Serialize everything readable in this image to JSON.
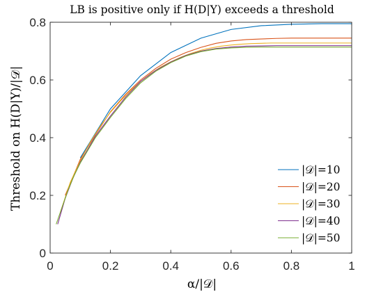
{
  "chart_data": {
    "type": "line",
    "title": "LB is positive only if H(D|Y) exceeds a threshold",
    "xlabel": "α/|𝒟|",
    "ylabel": "Threshold on H(D|Y)/|𝒟|",
    "xlim": [
      0,
      1
    ],
    "ylim": [
      0,
      0.8
    ],
    "xticks": [
      0,
      0.2,
      0.4,
      0.6,
      0.8,
      1
    ],
    "xtick_labels": [
      "0",
      "0.2",
      "0.4",
      "0.6",
      "0.8",
      "1"
    ],
    "yticks": [
      0,
      0.2,
      0.4,
      0.6,
      0.8
    ],
    "ytick_labels": [
      "0",
      "0.2",
      "0.4",
      "0.6",
      "0.8"
    ],
    "grid": false,
    "legend_position": "bottom-right",
    "series": [
      {
        "name": "|𝒟|=10",
        "color": "#0072BD",
        "x": [
          0.1,
          0.2,
          0.3,
          0.4,
          0.5,
          0.6,
          0.7,
          0.8,
          0.9,
          1.0
        ],
        "y": [
          0.33,
          0.5,
          0.615,
          0.695,
          0.745,
          0.775,
          0.788,
          0.793,
          0.795,
          0.795
        ]
      },
      {
        "name": "|𝒟|=20",
        "color": "#D95319",
        "x": [
          0.05,
          0.1,
          0.15,
          0.2,
          0.25,
          0.3,
          0.35,
          0.4,
          0.45,
          0.5,
          0.55,
          0.6,
          0.65,
          0.7,
          0.75,
          0.8,
          0.85,
          0.9,
          0.95,
          1.0
        ],
        "y": [
          0.2,
          0.325,
          0.41,
          0.49,
          0.55,
          0.6,
          0.64,
          0.672,
          0.695,
          0.713,
          0.727,
          0.735,
          0.74,
          0.742,
          0.744,
          0.745,
          0.745,
          0.745,
          0.745,
          0.745
        ]
      },
      {
        "name": "|𝒟|=30",
        "color": "#EDB120",
        "x": [
          0.0333,
          0.0667,
          0.1,
          0.1333,
          0.1667,
          0.2,
          0.2333,
          0.2667,
          0.3,
          0.3333,
          0.3667,
          0.4,
          0.4333,
          0.4667,
          0.5,
          0.5333,
          0.5667,
          0.6,
          0.6333,
          0.6667,
          0.7,
          0.7333,
          0.7667,
          0.8,
          0.8333,
          0.8667,
          0.9,
          0.9333,
          0.9667,
          1.0
        ],
        "y": [
          0.14,
          0.245,
          0.32,
          0.385,
          0.44,
          0.488,
          0.527,
          0.563,
          0.595,
          0.622,
          0.645,
          0.663,
          0.679,
          0.692,
          0.703,
          0.711,
          0.717,
          0.721,
          0.724,
          0.726,
          0.727,
          0.728,
          0.728,
          0.728,
          0.728,
          0.728,
          0.728,
          0.728,
          0.728,
          0.728
        ]
      },
      {
        "name": "|𝒟|=40",
        "color": "#7E2F8E",
        "x": [
          0.025,
          0.05,
          0.075,
          0.1,
          0.15,
          0.2,
          0.25,
          0.3,
          0.35,
          0.4,
          0.45,
          0.5,
          0.55,
          0.6,
          0.65,
          0.7,
          0.75,
          0.8,
          0.85,
          0.9,
          0.95,
          1.0
        ],
        "y": [
          0.1,
          0.19,
          0.258,
          0.315,
          0.405,
          0.475,
          0.54,
          0.595,
          0.633,
          0.662,
          0.685,
          0.7,
          0.709,
          0.714,
          0.717,
          0.718,
          0.719,
          0.719,
          0.719,
          0.719,
          0.719,
          0.719
        ]
      },
      {
        "name": "|𝒟|=50",
        "color": "#77AC30",
        "x": [
          0.02,
          0.04,
          0.06,
          0.08,
          0.1,
          0.15,
          0.2,
          0.25,
          0.3,
          0.35,
          0.4,
          0.45,
          0.5,
          0.55,
          0.6,
          0.65,
          0.7,
          0.75,
          0.8,
          0.85,
          0.9,
          0.95,
          1.0
        ],
        "y": [
          0.1,
          0.16,
          0.22,
          0.27,
          0.312,
          0.4,
          0.47,
          0.535,
          0.59,
          0.63,
          0.66,
          0.683,
          0.698,
          0.707,
          0.711,
          0.713,
          0.714,
          0.714,
          0.714,
          0.714,
          0.714,
          0.714,
          0.714
        ]
      }
    ]
  }
}
